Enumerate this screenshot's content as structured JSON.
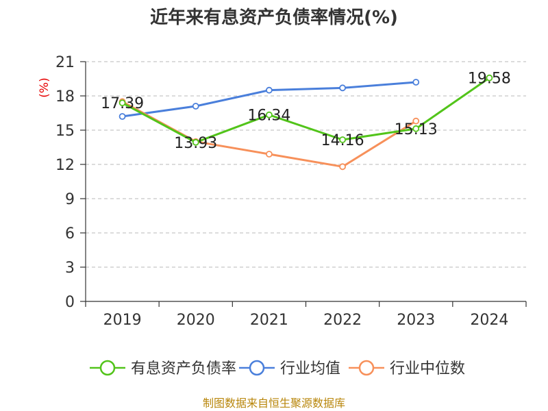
{
  "chart_data": {
    "type": "line",
    "title": "近年来有息资产负债率情况(%)",
    "ylabel": "(%)",
    "xlabel": "",
    "categories": [
      "2019",
      "2020",
      "2021",
      "2022",
      "2023",
      "2024"
    ],
    "ylim": [
      0,
      21
    ],
    "yticks": [
      0,
      3,
      6,
      9,
      12,
      15,
      18,
      21
    ],
    "grid": true,
    "legend_position": "bottom",
    "series": [
      {
        "name": "有息资产负债率",
        "color": "#52c41a",
        "values": [
          17.39,
          13.93,
          16.34,
          14.16,
          15.13,
          19.58
        ],
        "labels": [
          "17.39",
          "13.93",
          "16.34",
          "14.16",
          "15.13",
          "19.58"
        ]
      },
      {
        "name": "行业均值",
        "color": "#4a7fdb",
        "values": [
          16.2,
          17.1,
          18.5,
          18.7,
          19.2,
          null
        ]
      },
      {
        "name": "行业中位数",
        "color": "#f7905a",
        "values": [
          17.5,
          14.0,
          12.9,
          11.8,
          15.8,
          null
        ]
      }
    ]
  },
  "source": "制图数据来自恒生聚源数据库"
}
